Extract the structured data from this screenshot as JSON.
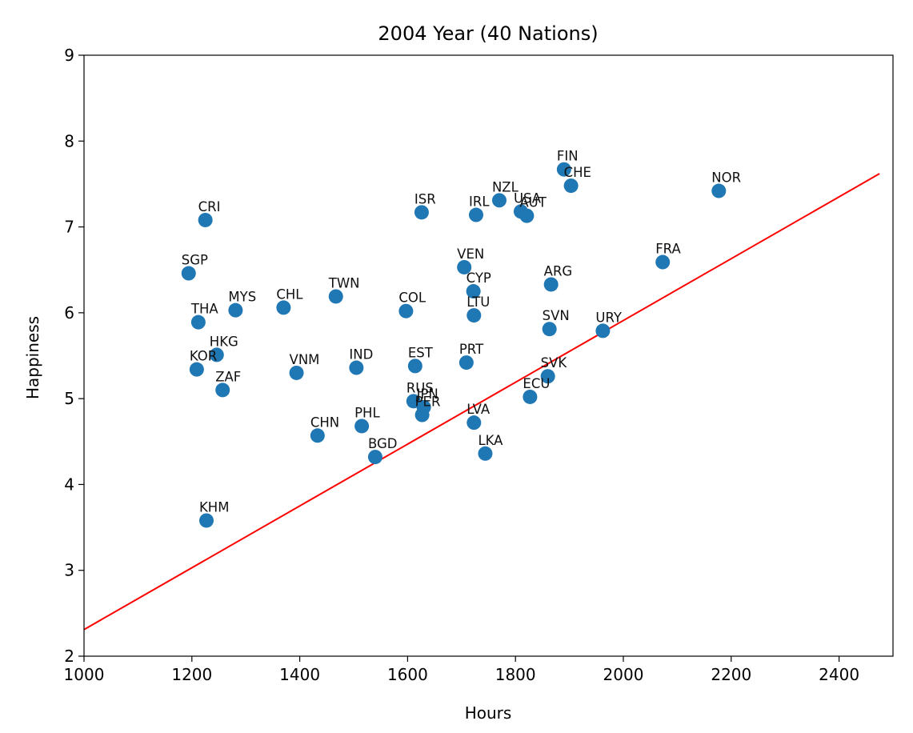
{
  "chart_data": {
    "type": "scatter",
    "title": "2004 Year (40 Nations)",
    "xlabel": "Hours",
    "ylabel": "Happiness",
    "xlim": [
      1000,
      2500
    ],
    "ylim": [
      2,
      9
    ],
    "xticks": [
      1000,
      1200,
      1400,
      1600,
      1800,
      2000,
      2200,
      2400
    ],
    "yticks": [
      2,
      3,
      4,
      5,
      6,
      7,
      8,
      9
    ],
    "grid": false,
    "point_color": "#1f77b4",
    "line_color": "#ff0000",
    "points": [
      {
        "label": "FIN",
        "x": 1890,
        "y": 7.67
      },
      {
        "label": "CHE",
        "x": 1903,
        "y": 7.48
      },
      {
        "label": "NOR",
        "x": 2177,
        "y": 7.42
      },
      {
        "label": "NZL",
        "x": 1770,
        "y": 7.31
      },
      {
        "label": "USA",
        "x": 1810,
        "y": 7.18
      },
      {
        "label": "AUT",
        "x": 1821,
        "y": 7.13
      },
      {
        "label": "IRL",
        "x": 1727,
        "y": 7.14
      },
      {
        "label": "ISR",
        "x": 1626,
        "y": 7.17
      },
      {
        "label": "CRI",
        "x": 1225,
        "y": 7.08
      },
      {
        "label": "FRA",
        "x": 2073,
        "y": 6.59
      },
      {
        "label": "VEN",
        "x": 1705,
        "y": 6.53
      },
      {
        "label": "SGP",
        "x": 1194,
        "y": 6.46
      },
      {
        "label": "ARG",
        "x": 1866,
        "y": 6.33
      },
      {
        "label": "CYP",
        "x": 1722,
        "y": 6.25
      },
      {
        "label": "TWN",
        "x": 1467,
        "y": 6.19
      },
      {
        "label": "CHL",
        "x": 1370,
        "y": 6.06
      },
      {
        "label": "MYS",
        "x": 1281,
        "y": 6.03
      },
      {
        "label": "COL",
        "x": 1597,
        "y": 6.02
      },
      {
        "label": "LTU",
        "x": 1723,
        "y": 5.97
      },
      {
        "label": "THA",
        "x": 1212,
        "y": 5.89
      },
      {
        "label": "SVN",
        "x": 1863,
        "y": 5.81
      },
      {
        "label": "URY",
        "x": 1962,
        "y": 5.79
      },
      {
        "label": "HKG",
        "x": 1246,
        "y": 5.51
      },
      {
        "label": "PRT",
        "x": 1709,
        "y": 5.42
      },
      {
        "label": "EST",
        "x": 1614,
        "y": 5.38
      },
      {
        "label": "IND",
        "x": 1505,
        "y": 5.36
      },
      {
        "label": "KOR",
        "x": 1209,
        "y": 5.34
      },
      {
        "label": "VNM",
        "x": 1394,
        "y": 5.3
      },
      {
        "label": "SVK",
        "x": 1860,
        "y": 5.26
      },
      {
        "label": "ZAF",
        "x": 1257,
        "y": 5.1
      },
      {
        "label": "ECU",
        "x": 1827,
        "y": 5.02
      },
      {
        "label": "RUS",
        "x": 1611,
        "y": 4.97
      },
      {
        "label": "JPN",
        "x": 1630,
        "y": 4.9
      },
      {
        "label": "PER",
        "x": 1627,
        "y": 4.81
      },
      {
        "label": "LVA",
        "x": 1723,
        "y": 4.72
      },
      {
        "label": "PHL",
        "x": 1515,
        "y": 4.68
      },
      {
        "label": "CHN",
        "x": 1433,
        "y": 4.57
      },
      {
        "label": "LKA",
        "x": 1744,
        "y": 4.36
      },
      {
        "label": "BGD",
        "x": 1540,
        "y": 4.32
      },
      {
        "label": "KHM",
        "x": 1227,
        "y": 3.58
      }
    ],
    "trend_line": {
      "x": [
        1000,
        2475
      ],
      "y": [
        2.31,
        7.62
      ]
    }
  }
}
